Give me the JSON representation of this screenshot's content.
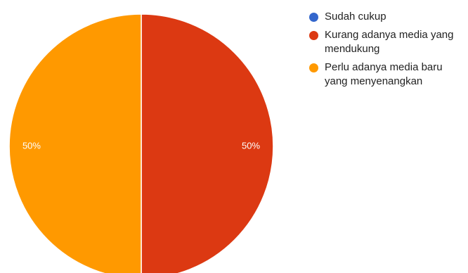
{
  "chart_data": {
    "type": "pie",
    "slices": [
      {
        "label": "Sudah cukup",
        "value": 0,
        "color": "#3366cc",
        "display": ""
      },
      {
        "label": "Kurang adanya media yang mendukung",
        "value": 50,
        "color": "#dc3912",
        "display": "50%"
      },
      {
        "label": "Perlu adanya media baru yang menyenangkan",
        "value": 50,
        "color": "#ff9900",
        "display": "50%"
      }
    ],
    "legend_position": "right",
    "start_angle_deg": 90,
    "direction": "clockwise"
  }
}
